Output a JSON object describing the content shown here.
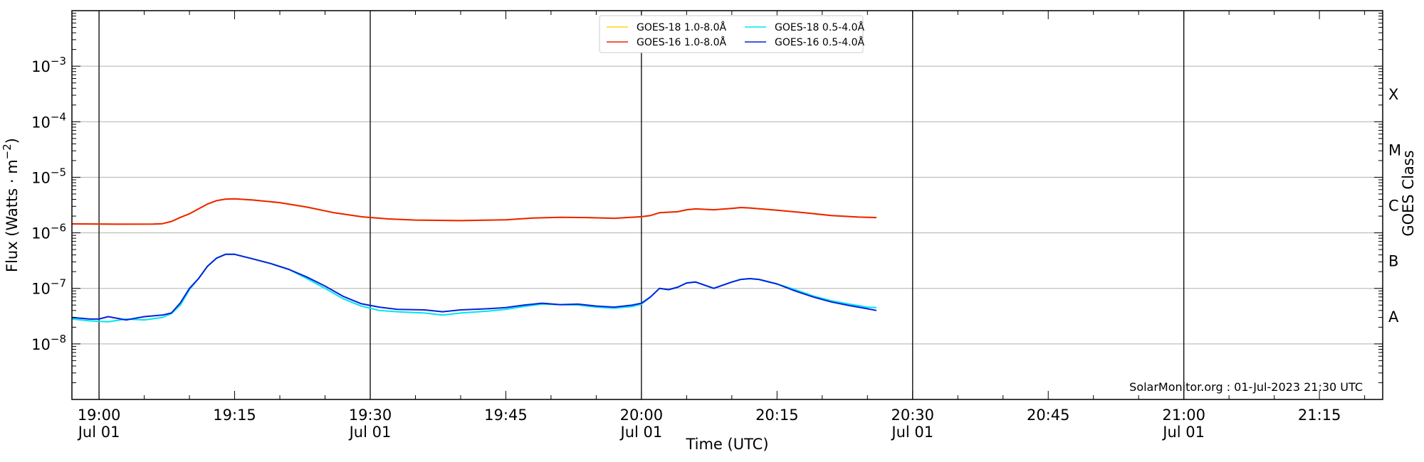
{
  "chart_data": {
    "type": "line",
    "x_unit": "UTC time of day on 01-Jul-2023",
    "xlabel": "Time (UTC)",
    "ylabel": "Flux (Watts · m⁻²)",
    "y2label": "GOES Class",
    "yscale": "log",
    "ylim": [
      1e-09,
      0.01
    ],
    "xlim": [
      "18:57",
      "21:22"
    ],
    "x_ticks": [
      {
        "time": "19:00",
        "label": "19:00",
        "sublabel": "Jul 01"
      },
      {
        "time": "19:15",
        "label": "19:15",
        "sublabel": ""
      },
      {
        "time": "19:30",
        "label": "19:30",
        "sublabel": "Jul 01"
      },
      {
        "time": "19:45",
        "label": "19:45",
        "sublabel": ""
      },
      {
        "time": "20:00",
        "label": "20:00",
        "sublabel": "Jul 01"
      },
      {
        "time": "20:15",
        "label": "20:15",
        "sublabel": ""
      },
      {
        "time": "20:30",
        "label": "20:30",
        "sublabel": "Jul 01"
      },
      {
        "time": "20:45",
        "label": "20:45",
        "sublabel": ""
      },
      {
        "time": "21:00",
        "label": "21:00",
        "sublabel": "Jul 01"
      },
      {
        "time": "21:15",
        "label": "21:15",
        "sublabel": ""
      }
    ],
    "vertical_lines": [
      "19:00",
      "19:30",
      "20:00",
      "20:30",
      "21:00"
    ],
    "y_ticks": [
      {
        "exp": -8,
        "base": "10",
        "sup": "−8"
      },
      {
        "exp": -7,
        "base": "10",
        "sup": "−7"
      },
      {
        "exp": -6,
        "base": "10",
        "sup": "−6"
      },
      {
        "exp": -5,
        "base": "10",
        "sup": "−5"
      },
      {
        "exp": -4,
        "base": "10",
        "sup": "−4"
      },
      {
        "exp": -3,
        "base": "10",
        "sup": "−3"
      }
    ],
    "goes_classes": [
      {
        "label": "A",
        "flux": 3.16e-08
      },
      {
        "label": "B",
        "flux": 3.16e-07
      },
      {
        "label": "C",
        "flux": 3.16e-06
      },
      {
        "label": "M",
        "flux": 3.16e-05
      },
      {
        "label": "X",
        "flux": 0.000316
      }
    ],
    "grid": "horizontal at decades",
    "legend_position": "top-center",
    "series": [
      {
        "name": "GOES-18 1.0-8.0Å",
        "color": "#ffd700",
        "points": [
          [
            "18:57",
            1.45e-06
          ],
          [
            "19:02",
            1.43e-06
          ],
          [
            "19:06",
            1.44e-06
          ],
          [
            "19:07",
            1.46e-06
          ],
          [
            "19:08",
            1.6e-06
          ],
          [
            "19:09",
            1.9e-06
          ],
          [
            "19:10",
            2.2e-06
          ],
          [
            "19:11",
            2.7e-06
          ],
          [
            "19:12",
            3.3e-06
          ],
          [
            "19:13",
            3.8e-06
          ],
          [
            "19:14",
            4.05e-06
          ],
          [
            "19:15",
            4.1e-06
          ],
          [
            "19:17",
            3.9e-06
          ],
          [
            "19:20",
            3.5e-06
          ],
          [
            "19:23",
            2.9e-06
          ],
          [
            "19:26",
            2.3e-06
          ],
          [
            "19:29",
            1.95e-06
          ],
          [
            "19:32",
            1.78e-06
          ],
          [
            "19:35",
            1.7e-06
          ],
          [
            "19:40",
            1.66e-06
          ],
          [
            "19:45",
            1.72e-06
          ],
          [
            "19:48",
            1.85e-06
          ],
          [
            "19:51",
            1.9e-06
          ],
          [
            "19:54",
            1.88e-06
          ],
          [
            "19:57",
            1.83e-06
          ],
          [
            "20:00",
            1.95e-06
          ],
          [
            "20:01",
            2.05e-06
          ],
          [
            "20:02",
            2.3e-06
          ],
          [
            "20:04",
            2.4e-06
          ],
          [
            "20:05",
            2.6e-06
          ],
          [
            "20:06",
            2.7e-06
          ],
          [
            "20:08",
            2.6e-06
          ],
          [
            "20:10",
            2.75e-06
          ],
          [
            "20:11",
            2.85e-06
          ],
          [
            "20:12",
            2.8e-06
          ],
          [
            "20:15",
            2.55e-06
          ],
          [
            "20:18",
            2.3e-06
          ],
          [
            "20:21",
            2.05e-06
          ],
          [
            "20:24",
            1.92e-06
          ],
          [
            "20:26",
            1.88e-06
          ]
        ]
      },
      {
        "name": "GOES-16 1.0-8.0Å",
        "color": "#ee2200",
        "points": [
          [
            "18:57",
            1.45e-06
          ],
          [
            "19:02",
            1.43e-06
          ],
          [
            "19:06",
            1.44e-06
          ],
          [
            "19:07",
            1.46e-06
          ],
          [
            "19:08",
            1.6e-06
          ],
          [
            "19:09",
            1.9e-06
          ],
          [
            "19:10",
            2.2e-06
          ],
          [
            "19:11",
            2.7e-06
          ],
          [
            "19:12",
            3.3e-06
          ],
          [
            "19:13",
            3.8e-06
          ],
          [
            "19:14",
            4.05e-06
          ],
          [
            "19:15",
            4.1e-06
          ],
          [
            "19:17",
            3.9e-06
          ],
          [
            "19:20",
            3.5e-06
          ],
          [
            "19:23",
            2.9e-06
          ],
          [
            "19:26",
            2.3e-06
          ],
          [
            "19:29",
            1.95e-06
          ],
          [
            "19:32",
            1.78e-06
          ],
          [
            "19:35",
            1.7e-06
          ],
          [
            "19:40",
            1.66e-06
          ],
          [
            "19:45",
            1.72e-06
          ],
          [
            "19:48",
            1.85e-06
          ],
          [
            "19:51",
            1.9e-06
          ],
          [
            "19:54",
            1.88e-06
          ],
          [
            "19:57",
            1.83e-06
          ],
          [
            "20:00",
            1.95e-06
          ],
          [
            "20:01",
            2.05e-06
          ],
          [
            "20:02",
            2.3e-06
          ],
          [
            "20:04",
            2.4e-06
          ],
          [
            "20:05",
            2.6e-06
          ],
          [
            "20:06",
            2.7e-06
          ],
          [
            "20:08",
            2.6e-06
          ],
          [
            "20:10",
            2.75e-06
          ],
          [
            "20:11",
            2.85e-06
          ],
          [
            "20:12",
            2.8e-06
          ],
          [
            "20:15",
            2.55e-06
          ],
          [
            "20:18",
            2.3e-06
          ],
          [
            "20:21",
            2.05e-06
          ],
          [
            "20:24",
            1.92e-06
          ],
          [
            "20:26",
            1.88e-06
          ]
        ]
      },
      {
        "name": "GOES-18 0.5-4.0Å",
        "color": "#00e5ee",
        "points": [
          [
            "18:57",
            2.8e-08
          ],
          [
            "18:59",
            2.6e-08
          ],
          [
            "19:01",
            2.5e-08
          ],
          [
            "19:03",
            2.8e-08
          ],
          [
            "19:05",
            2.7e-08
          ],
          [
            "19:07",
            3e-08
          ],
          [
            "19:08",
            3.5e-08
          ],
          [
            "19:09",
            5e-08
          ],
          [
            "19:10",
            9.5e-08
          ],
          [
            "19:11",
            1.5e-07
          ],
          [
            "19:12",
            2.5e-07
          ],
          [
            "19:13",
            3.5e-07
          ],
          [
            "19:14",
            4.1e-07
          ],
          [
            "19:15",
            4.1e-07
          ],
          [
            "19:17",
            3.4e-07
          ],
          [
            "19:19",
            2.8e-07
          ],
          [
            "19:21",
            2.2e-07
          ],
          [
            "19:23",
            1.5e-07
          ],
          [
            "19:25",
            1e-07
          ],
          [
            "19:27",
            6.5e-08
          ],
          [
            "19:29",
            4.8e-08
          ],
          [
            "19:31",
            4e-08
          ],
          [
            "19:33",
            3.8e-08
          ],
          [
            "19:36",
            3.6e-08
          ],
          [
            "19:38",
            3.3e-08
          ],
          [
            "19:40",
            3.6e-08
          ],
          [
            "19:43",
            3.9e-08
          ],
          [
            "19:45",
            4.2e-08
          ],
          [
            "19:47",
            4.7e-08
          ],
          [
            "19:49",
            5.2e-08
          ],
          [
            "19:51",
            5.1e-08
          ],
          [
            "19:53",
            5e-08
          ],
          [
            "19:55",
            4.6e-08
          ],
          [
            "19:57",
            4.4e-08
          ],
          [
            "19:59",
            4.7e-08
          ],
          [
            "20:00",
            5.2e-08
          ],
          [
            "20:01",
            7e-08
          ],
          [
            "20:02",
            1e-07
          ],
          [
            "20:03",
            9.5e-08
          ],
          [
            "20:04",
            1.05e-07
          ],
          [
            "20:05",
            1.25e-07
          ],
          [
            "20:06",
            1.3e-07
          ],
          [
            "20:08",
            1e-07
          ],
          [
            "20:10",
            1.3e-07
          ],
          [
            "20:11",
            1.45e-07
          ],
          [
            "20:12",
            1.5e-07
          ],
          [
            "20:13",
            1.45e-07
          ],
          [
            "20:15",
            1.2e-07
          ],
          [
            "20:17",
            9.5e-08
          ],
          [
            "20:19",
            7.3e-08
          ],
          [
            "20:21",
            6e-08
          ],
          [
            "20:23",
            5.2e-08
          ],
          [
            "20:25",
            4.6e-08
          ],
          [
            "20:26",
            4.5e-08
          ]
        ]
      },
      {
        "name": "GOES-16 0.5-4.0Å",
        "color": "#0022dd",
        "points": [
          [
            "18:57",
            3e-08
          ],
          [
            "18:59",
            2.8e-08
          ],
          [
            "19:00",
            2.8e-08
          ],
          [
            "19:01",
            3.1e-08
          ],
          [
            "19:03",
            2.7e-08
          ],
          [
            "19:05",
            3.1e-08
          ],
          [
            "19:07",
            3.3e-08
          ],
          [
            "19:08",
            3.6e-08
          ],
          [
            "19:09",
            5.5e-08
          ],
          [
            "19:10",
            1e-07
          ],
          [
            "19:11",
            1.5e-07
          ],
          [
            "19:12",
            2.5e-07
          ],
          [
            "19:13",
            3.5e-07
          ],
          [
            "19:14",
            4.1e-07
          ],
          [
            "19:15",
            4.1e-07
          ],
          [
            "19:17",
            3.4e-07
          ],
          [
            "19:19",
            2.8e-07
          ],
          [
            "19:21",
            2.2e-07
          ],
          [
            "19:23",
            1.6e-07
          ],
          [
            "19:25",
            1.1e-07
          ],
          [
            "19:27",
            7.2e-08
          ],
          [
            "19:29",
            5.3e-08
          ],
          [
            "19:31",
            4.6e-08
          ],
          [
            "19:33",
            4.2e-08
          ],
          [
            "19:36",
            4.1e-08
          ],
          [
            "19:38",
            3.8e-08
          ],
          [
            "19:40",
            4.1e-08
          ],
          [
            "19:43",
            4.3e-08
          ],
          [
            "19:45",
            4.5e-08
          ],
          [
            "19:47",
            5e-08
          ],
          [
            "19:49",
            5.4e-08
          ],
          [
            "19:51",
            5.1e-08
          ],
          [
            "19:53",
            5.2e-08
          ],
          [
            "19:55",
            4.8e-08
          ],
          [
            "19:57",
            4.6e-08
          ],
          [
            "19:59",
            5e-08
          ],
          [
            "20:00",
            5.4e-08
          ],
          [
            "20:01",
            7e-08
          ],
          [
            "20:02",
            1e-07
          ],
          [
            "20:03",
            9.5e-08
          ],
          [
            "20:04",
            1.05e-07
          ],
          [
            "20:05",
            1.25e-07
          ],
          [
            "20:06",
            1.3e-07
          ],
          [
            "20:08",
            1e-07
          ],
          [
            "20:10",
            1.3e-07
          ],
          [
            "20:11",
            1.45e-07
          ],
          [
            "20:12",
            1.5e-07
          ],
          [
            "20:13",
            1.45e-07
          ],
          [
            "20:15",
            1.2e-07
          ],
          [
            "20:17",
            9e-08
          ],
          [
            "20:19",
            7e-08
          ],
          [
            "20:21",
            5.7e-08
          ],
          [
            "20:23",
            4.9e-08
          ],
          [
            "20:25",
            4.3e-08
          ],
          [
            "20:26",
            4e-08
          ]
        ]
      }
    ]
  },
  "watermark": "SolarMonitor.org : 01-Jul-2023 21:30 UTC"
}
